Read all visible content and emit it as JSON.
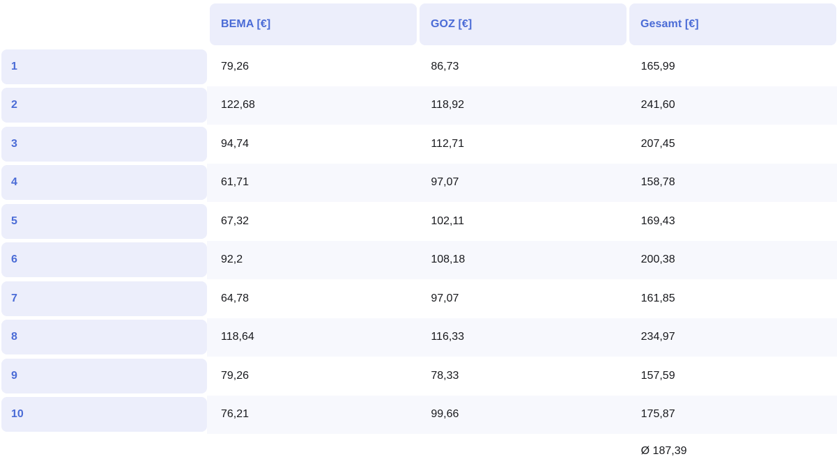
{
  "table": {
    "columns": [
      {
        "label": "BEMA [€]"
      },
      {
        "label": "GOZ [€]"
      },
      {
        "label": "Gesamt [€]"
      }
    ],
    "rows": [
      {
        "label": "1",
        "cells": [
          "79,26",
          "86,73",
          "165,99"
        ]
      },
      {
        "label": "2",
        "cells": [
          "122,68",
          "118,92",
          "241,60"
        ]
      },
      {
        "label": "3",
        "cells": [
          "94,74",
          "112,71",
          "207,45"
        ]
      },
      {
        "label": "4",
        "cells": [
          "61,71",
          "97,07",
          "158,78"
        ]
      },
      {
        "label": "5",
        "cells": [
          "67,32",
          "102,11",
          "169,43"
        ]
      },
      {
        "label": "6",
        "cells": [
          "92,2",
          "108,18",
          "200,38"
        ]
      },
      {
        "label": "7",
        "cells": [
          "64,78",
          "97,07",
          "161,85"
        ]
      },
      {
        "label": "8",
        "cells": [
          "118,64",
          "116,33",
          "234,97"
        ]
      },
      {
        "label": "9",
        "cells": [
          "79,26",
          "78,33",
          "157,59"
        ]
      },
      {
        "label": "10",
        "cells": [
          "76,21",
          "99,66",
          "175,87"
        ]
      }
    ],
    "footer": {
      "gesamt_average": "Ø 187,39"
    }
  },
  "colors": {
    "accent_text": "#4a6bd6",
    "header_bg": "#eceefb",
    "stripe_bg": "#f7f8fd",
    "data_text": "#17181c",
    "page_bg": "#ffffff"
  }
}
